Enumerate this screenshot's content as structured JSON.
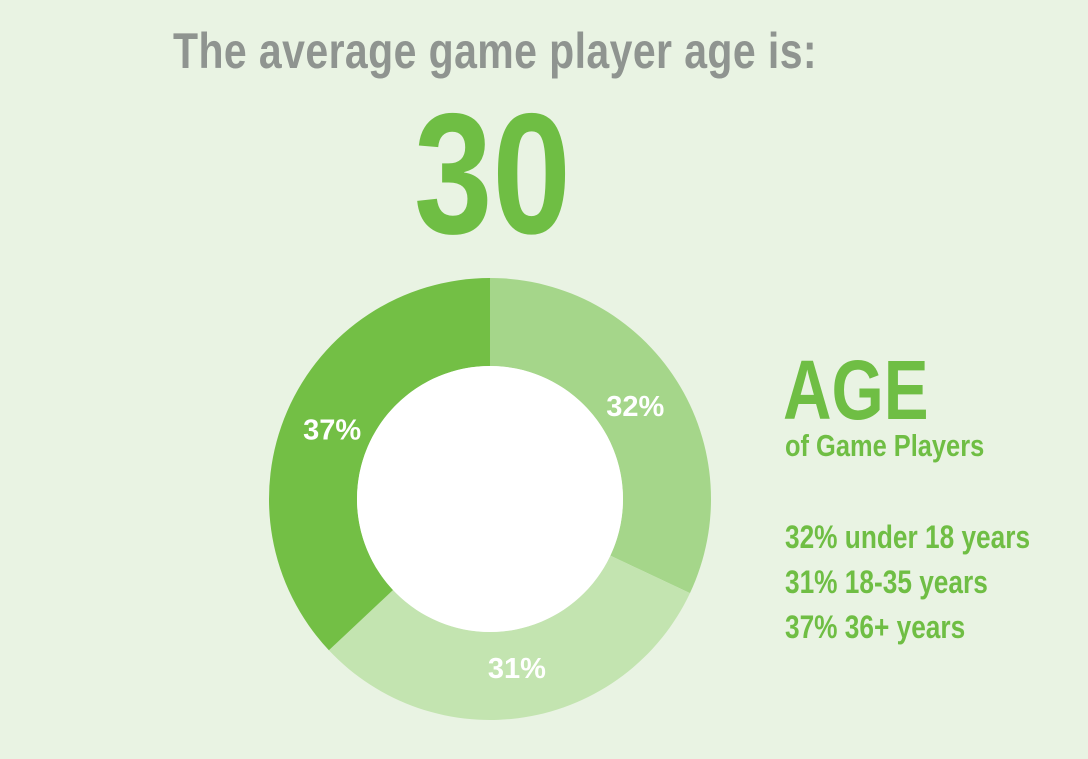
{
  "headline": "The average game player age is:",
  "average_age": "30",
  "chart_data": {
    "type": "pie",
    "title": "AGE",
    "subtitle": "of Game Players",
    "categories": [
      "under 18 years",
      "18-35 years",
      "36+ years"
    ],
    "values": [
      32,
      31,
      37
    ],
    "data_labels": [
      "32%",
      "31%",
      "37%"
    ],
    "colors": [
      "#a5d68a",
      "#c3e4b0",
      "#73bf45"
    ],
    "hole_color": "#ffffff",
    "donut": true,
    "legend_placement": "right",
    "legend_entries": [
      "32% under 18 years",
      "31% 18-35 years",
      "37% 36+ years"
    ]
  },
  "colors": {
    "background": "#e9f3e3",
    "accent_green": "#6fbe44",
    "headline_gray": "#8f9490"
  }
}
